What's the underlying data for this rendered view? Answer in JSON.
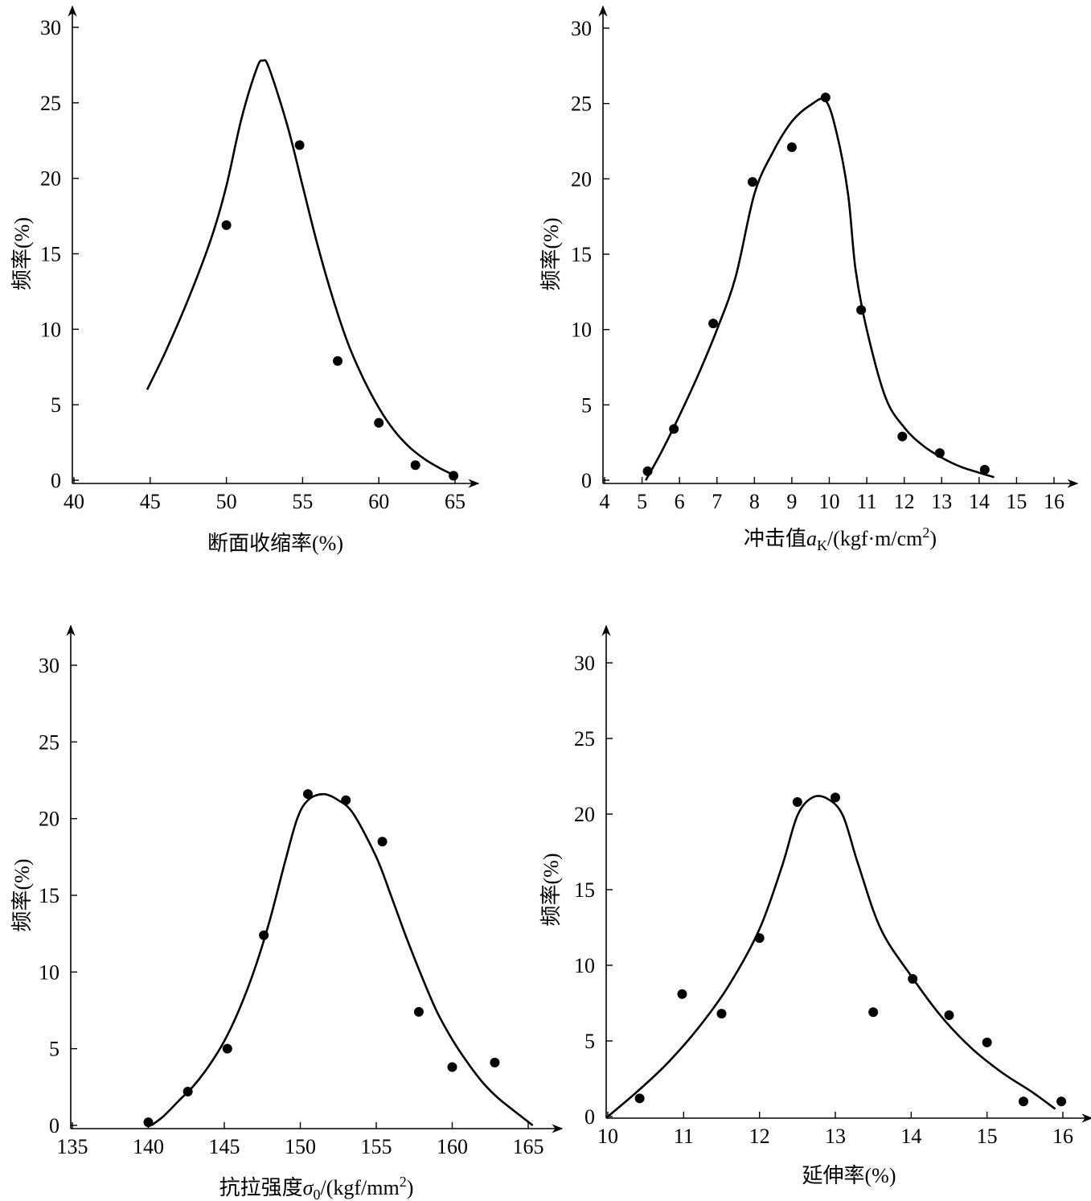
{
  "chart_data": [
    {
      "type": "scatter",
      "xlabel": "断面收缩率(%)",
      "ylabel": "频率(%)",
      "xlim": [
        40,
        65
      ],
      "ylim": [
        0,
        30
      ],
      "xticks": [
        "40",
        "45",
        "50",
        "55",
        "60",
        "65"
      ],
      "yticks": [
        "0",
        "5",
        "10",
        "15",
        "20",
        "25",
        "30"
      ],
      "points": {
        "x": [
          50,
          54.8,
          57.3,
          60,
          62.4,
          64.9
        ],
        "y": [
          16.9,
          22.2,
          7.9,
          3.8,
          1.0,
          0.3
        ]
      },
      "curve": {
        "x": [
          44.8,
          46,
          47.5,
          49,
          50,
          51,
          52,
          52.4,
          52.8,
          54,
          55,
          56,
          57,
          58,
          59,
          60,
          61,
          62,
          63,
          64,
          65
        ],
        "y": [
          6.0,
          8.5,
          12.0,
          16.0,
          19.5,
          24.0,
          27.3,
          27.8,
          27.3,
          23.5,
          19.5,
          15.5,
          12.0,
          9.0,
          6.7,
          4.8,
          3.3,
          2.2,
          1.4,
          0.8,
          0.3
        ]
      }
    },
    {
      "type": "scatter",
      "xlabel": "冲击值",
      "xlabel_var": "a",
      "xlabel_sub": "K",
      "xlabel_unit": "/(kgf·m/cm",
      "xlabel_sup": "2",
      "xlabel_end": ")",
      "ylabel": "频率(%)",
      "xlim": [
        4,
        16
      ],
      "ylim": [
        0,
        30
      ],
      "xticks": [
        "4",
        "5",
        "6",
        "7",
        "8",
        "9",
        "10",
        "11",
        "12",
        "13",
        "14",
        "15",
        "16"
      ],
      "yticks": [
        "0",
        "5",
        "10",
        "15",
        "20",
        "25",
        "30"
      ],
      "points": {
        "x": [
          5.15,
          5.85,
          6.9,
          7.95,
          9.0,
          9.9,
          10.85,
          11.95,
          12.95,
          14.15
        ],
        "y": [
          0.6,
          3.4,
          10.4,
          19.8,
          22.1,
          25.4,
          11.3,
          2.9,
          1.8,
          0.7
        ]
      },
      "curve": {
        "x": [
          5.1,
          5.5,
          6,
          6.5,
          7,
          7.5,
          8,
          8.5,
          9,
          9.5,
          9.9,
          10.2,
          10.5,
          10.7,
          11,
          11.5,
          12,
          12.5,
          13,
          13.5,
          14,
          14.4
        ],
        "y": [
          0.0,
          1.8,
          4.3,
          7.0,
          10.0,
          13.5,
          19.0,
          21.8,
          23.8,
          24.9,
          25.2,
          23.0,
          19.0,
          14.0,
          10.0,
          5.5,
          3.5,
          2.3,
          1.5,
          0.9,
          0.5,
          0.2
        ]
      }
    },
    {
      "type": "scatter",
      "xlabel": "抗拉强度",
      "xlabel_var": "σ",
      "xlabel_sub": "0",
      "xlabel_unit": "/(kgf/mm",
      "xlabel_sup": "2",
      "xlabel_end": ")",
      "ylabel": "频率(%)",
      "xlim": [
        135,
        165
      ],
      "ylim": [
        0,
        30
      ],
      "xticks": [
        "135",
        "140",
        "145",
        "150",
        "155",
        "160",
        "165"
      ],
      "yticks": [
        "0",
        "5",
        "10",
        "15",
        "20",
        "25",
        "30"
      ],
      "points": {
        "x": [
          140,
          142.6,
          145.2,
          147.6,
          150.5,
          153,
          155.4,
          157.8,
          160,
          162.8
        ],
        "y": [
          0.2,
          2.2,
          5.0,
          12.4,
          21.6,
          21.2,
          18.5,
          7.4,
          3.8,
          4.1
        ]
      },
      "curve": {
        "x": [
          140.2,
          141,
          142,
          143,
          144,
          145,
          146,
          147,
          148,
          149,
          149.8,
          150.5,
          151.5,
          152.5,
          153.5,
          155,
          156,
          157,
          158,
          159,
          160,
          161,
          162,
          163,
          164,
          165.3
        ],
        "y": [
          0.0,
          0.6,
          1.6,
          2.6,
          3.9,
          5.5,
          7.6,
          10.2,
          13.4,
          17.2,
          20.0,
          21.2,
          21.6,
          21.2,
          20.3,
          17.5,
          14.9,
          12.2,
          9.7,
          7.4,
          5.6,
          4.1,
          2.8,
          1.8,
          1.0,
          0.0
        ]
      }
    },
    {
      "type": "scatter",
      "xlabel": "延伸率(%)",
      "ylabel": "频率(%)",
      "xlim": [
        10,
        16
      ],
      "ylim": [
        0,
        30
      ],
      "xticks": [
        "10",
        "11",
        "12",
        "13",
        "14",
        "15",
        "16"
      ],
      "yticks": [
        "0",
        "5",
        "10",
        "15",
        "20",
        "25",
        "30"
      ],
      "points": {
        "x": [
          10.42,
          10.98,
          11.5,
          12.0,
          12.5,
          13.0,
          13.5,
          14.02,
          14.5,
          15.0,
          15.48,
          15.98
        ],
        "y": [
          1.2,
          8.1,
          6.8,
          11.8,
          20.8,
          21.1,
          6.9,
          9.1,
          6.7,
          4.9,
          1.0,
          1.0
        ]
      },
      "curve": {
        "x": [
          10,
          10.4,
          10.8,
          11.2,
          11.6,
          12.0,
          12.3,
          12.5,
          12.7,
          12.9,
          13.1,
          13.3,
          13.6,
          14.0,
          14.4,
          14.8,
          15.2,
          15.6,
          15.9
        ],
        "y": [
          0.0,
          1.7,
          3.6,
          5.9,
          8.7,
          12.4,
          16.6,
          19.9,
          21.1,
          21.0,
          19.9,
          16.7,
          12.4,
          9.3,
          6.6,
          4.5,
          2.9,
          1.6,
          0.5
        ]
      }
    }
  ]
}
